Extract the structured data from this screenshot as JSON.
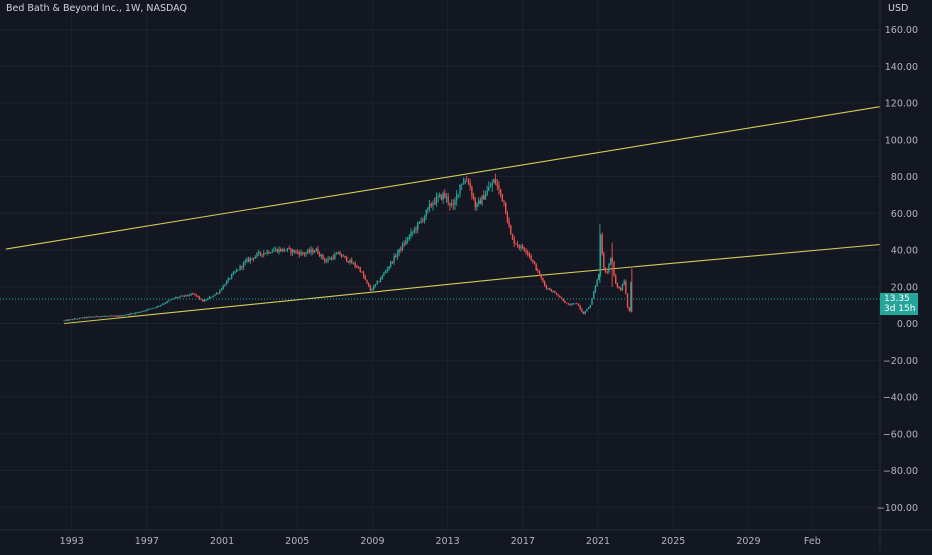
{
  "header": {
    "symbol_title": "Bed Bath & Beyond Inc., 1W, NASDAQ",
    "currency": "USD"
  },
  "last_price": {
    "value": "13.35",
    "countdown": "3d 15h"
  },
  "colors": {
    "background": "#131722",
    "up": "#26a69a",
    "down": "#ef5350",
    "trendline": "#d4cc55",
    "grid": "#1e2230",
    "text": "#b2b5be"
  },
  "chart_data": {
    "type": "candlestick",
    "title": "Bed Bath & Beyond Inc., 1W, NASDAQ",
    "ylabel": "USD",
    "ylim": [
      -110,
      170
    ],
    "y_ticks": [
      160,
      140,
      120,
      100,
      80,
      60,
      40,
      20,
      0,
      -20,
      -40,
      -60,
      -80,
      -100
    ],
    "y_tick_labels": [
      "160.00",
      "140.00",
      "120.00",
      "100.00",
      "80.00",
      "60.00",
      "40.00",
      "20.00",
      "0.00",
      "−20.00",
      "−40.00",
      "−60.00",
      "−80.00",
      "−100.00"
    ],
    "x_range": [
      1989.4,
      2036.0
    ],
    "x_ticks": [
      1993,
      1997,
      2001,
      2005,
      2009,
      2013,
      2017,
      2021,
      2025,
      2029,
      2032.4
    ],
    "x_tick_labels": [
      "1993",
      "1997",
      "2001",
      "2005",
      "2009",
      "2013",
      "2017",
      "2021",
      "2025",
      "2029",
      "Feb"
    ],
    "grid": true,
    "price_path": [
      [
        1992.6,
        1.5
      ],
      [
        1993.5,
        3
      ],
      [
        1994.5,
        4
      ],
      [
        1995.5,
        4
      ],
      [
        1996.5,
        6
      ],
      [
        1997.5,
        9
      ],
      [
        1998.5,
        14
      ],
      [
        1999.5,
        16
      ],
      [
        2000,
        12
      ],
      [
        2000.8,
        17
      ],
      [
        2001.5,
        26
      ],
      [
        2002.3,
        34
      ],
      [
        2003,
        38
      ],
      [
        2003.8,
        40
      ],
      [
        2004.5,
        40
      ],
      [
        2005.3,
        38
      ],
      [
        2006,
        40
      ],
      [
        2006.5,
        34
      ],
      [
        2007.2,
        38
      ],
      [
        2008.3,
        30
      ],
      [
        2008.9,
        18
      ],
      [
        2009.4,
        24
      ],
      [
        2010.3,
        38
      ],
      [
        2011,
        48
      ],
      [
        2011.6,
        56
      ],
      [
        2012.2,
        66
      ],
      [
        2012.8,
        70
      ],
      [
        2013.3,
        63
      ],
      [
        2013.7,
        77
      ],
      [
        2014.1,
        78
      ],
      [
        2014.5,
        63
      ],
      [
        2015.1,
        72
      ],
      [
        2015.5,
        78
      ],
      [
        2016,
        66
      ],
      [
        2016.4,
        46
      ],
      [
        2016.8,
        42
      ],
      [
        2017.2,
        40
      ],
      [
        2017.7,
        30
      ],
      [
        2018.2,
        20
      ],
      [
        2018.8,
        16
      ],
      [
        2019.4,
        10
      ],
      [
        2019.9,
        11
      ],
      [
        2020.2,
        5
      ],
      [
        2020.6,
        10
      ],
      [
        2020.9,
        22
      ],
      [
        2021.05,
        28
      ],
      [
        2021.1,
        50
      ],
      [
        2021.3,
        30
      ],
      [
        2021.5,
        28
      ],
      [
        2021.7,
        38
      ],
      [
        2021.9,
        22
      ],
      [
        2022.2,
        18
      ],
      [
        2022.4,
        24
      ],
      [
        2022.55,
        10
      ],
      [
        2022.65,
        5
      ],
      [
        2022.75,
        22
      ],
      [
        2022.8,
        13.35
      ]
    ],
    "trendlines": [
      {
        "name": "upper",
        "start": [
          1989.5,
          40.5
        ],
        "end": [
          2036,
          118
        ]
      },
      {
        "name": "lower-mid",
        "start": [
          2016.6,
          25
        ],
        "end": [
          2036,
          43
        ]
      },
      {
        "name": "lower",
        "start": [
          1992.6,
          0
        ],
        "end": [
          2016.6,
          25
        ]
      }
    ],
    "last_price": 13.35
  }
}
